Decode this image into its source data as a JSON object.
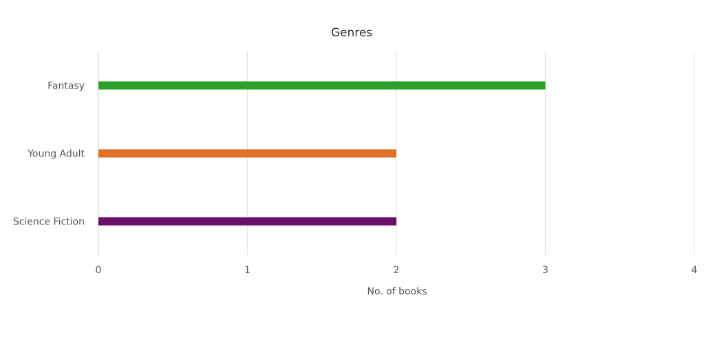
{
  "chart_data": {
    "type": "bar",
    "orientation": "horizontal",
    "title": "Genres",
    "xlabel": "No. of books",
    "ylabel": "",
    "categories": [
      "Fantasy",
      "Young Adult",
      "Science Fiction"
    ],
    "values": [
      3,
      2,
      2
    ],
    "colors": [
      "#2ca02c",
      "#e27128",
      "#6a1069"
    ],
    "xlim": [
      0,
      4
    ],
    "xticks": [
      "0",
      "1",
      "2",
      "3",
      "4"
    ],
    "grid": true,
    "legend": "none"
  }
}
